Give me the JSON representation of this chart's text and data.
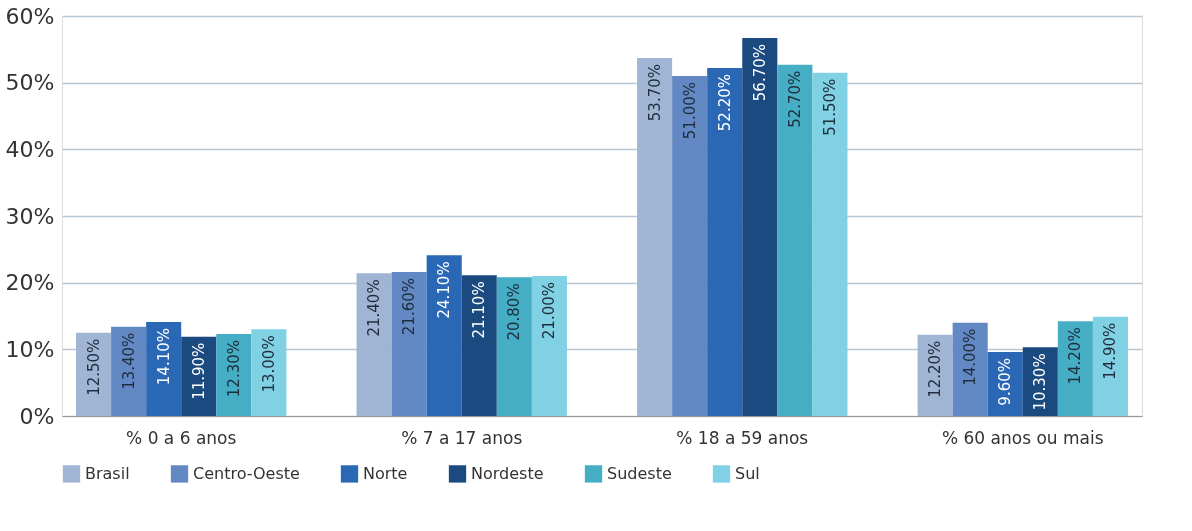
{
  "chart_data": {
    "type": "bar",
    "categories": [
      "% 0 a 6 anos",
      "% 7 a 17 anos",
      "% 18 a 59 anos",
      "% 60 anos ou mais"
    ],
    "series": [
      {
        "name": "Brasil",
        "color": "#a0b5d3",
        "values": [
          12.5,
          21.4,
          53.7,
          12.2
        ],
        "value_labels": [
          "12.50%",
          "21.40%",
          "53.70%",
          "12.20%"
        ]
      },
      {
        "name": "Centro-Oeste",
        "color": "#6289c4",
        "values": [
          13.4,
          21.6,
          51.0,
          14.0
        ],
        "value_labels": [
          "13.40%",
          "21.60%",
          "51.00%",
          "14.00%"
        ]
      },
      {
        "name": "Norte",
        "color": "#2a67b4",
        "values": [
          14.1,
          24.1,
          52.2,
          9.6
        ],
        "value_labels": [
          "14.10%",
          "24.10%",
          "52.20%",
          "9.60%"
        ]
      },
      {
        "name": "Nordeste",
        "color": "#1a4a80",
        "values": [
          11.9,
          21.1,
          56.7,
          10.3
        ],
        "value_labels": [
          "11.90%",
          "21.10%",
          "56.70%",
          "10.30%"
        ]
      },
      {
        "name": "Sudeste",
        "color": "#45adc4",
        "values": [
          12.3,
          20.8,
          52.7,
          14.2
        ],
        "value_labels": [
          "12.30%",
          "20.80%",
          "52.70%",
          "14.20%"
        ]
      },
      {
        "name": "Sul",
        "color": "#7fd1e3",
        "values": [
          13.0,
          21.0,
          51.5,
          14.9
        ],
        "value_labels": [
          "13.00%",
          "21.00%",
          "51.50%",
          "14.90%"
        ]
      }
    ],
    "ylim": [
      0,
      60
    ],
    "yticks": [
      {
        "value": 0,
        "label": "0%"
      },
      {
        "value": 10,
        "label": "10%"
      },
      {
        "value": 20,
        "label": "20%"
      },
      {
        "value": 30,
        "label": "30%"
      },
      {
        "value": 40,
        "label": "40%"
      },
      {
        "value": 50,
        "label": "50%"
      },
      {
        "value": 60,
        "label": "60%"
      }
    ],
    "grid": "y",
    "legend": "bottom"
  }
}
